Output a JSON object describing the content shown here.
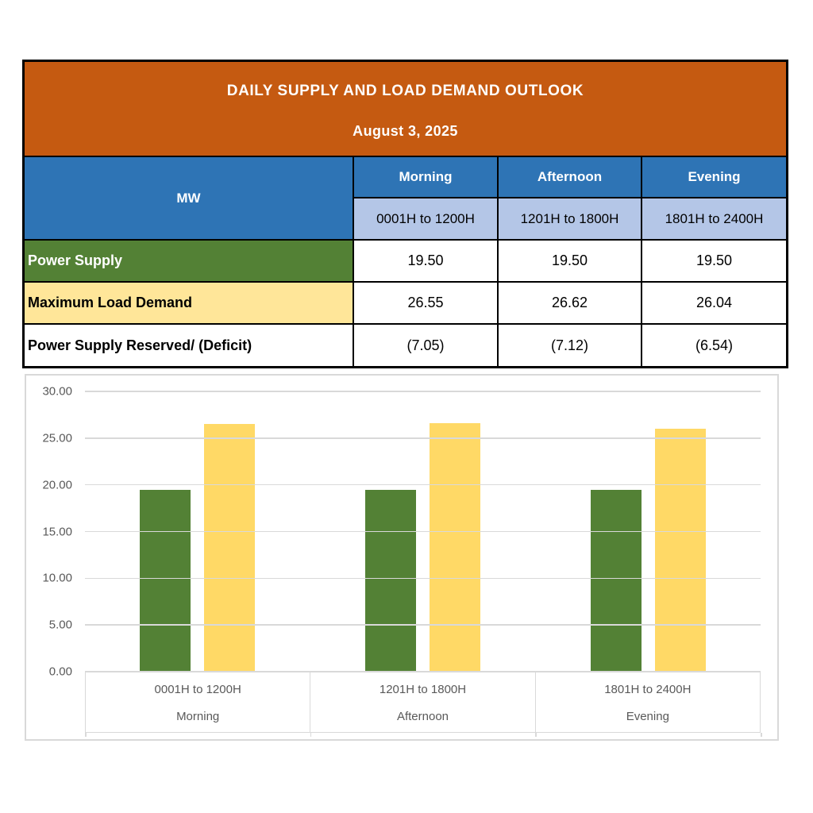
{
  "header": {
    "title": "DAILY SUPPLY AND LOAD DEMAND OUTLOOK",
    "date": "August 3, 2025"
  },
  "table": {
    "unit_label": "MW",
    "columns": [
      {
        "period": "Morning",
        "range": "0001H to 1200H"
      },
      {
        "period": "Afternoon",
        "range": "1201H to 1800H"
      },
      {
        "period": "Evening",
        "range": "1801H to 2400H"
      }
    ],
    "rows": [
      {
        "label": "Power Supply",
        "values": [
          "19.50",
          "19.50",
          "19.50"
        ]
      },
      {
        "label": "Maximum Load Demand",
        "values": [
          "26.55",
          "26.62",
          "26.04"
        ]
      },
      {
        "label": "Power Supply Reserved/ (Deficit)",
        "values": [
          "(7.05)",
          "(7.12)",
          "(6.54)"
        ]
      }
    ]
  },
  "chart_data": {
    "type": "bar",
    "categories": [
      {
        "range": "0001H to 1200H",
        "period": "Morning"
      },
      {
        "range": "1201H to 1800H",
        "period": "Afternoon"
      },
      {
        "range": "1801H to 2400H",
        "period": "Evening"
      }
    ],
    "series": [
      {
        "name": "Power Supply",
        "color": "#538135",
        "values": [
          19.5,
          19.5,
          19.5
        ]
      },
      {
        "name": "Maximum Load Demand",
        "color": "#FFD966",
        "values": [
          26.55,
          26.62,
          26.04
        ]
      }
    ],
    "title": "",
    "xlabel": "",
    "ylabel": "",
    "ylim": [
      0,
      30
    ],
    "y_tick_step": 5,
    "y_tick_labels": [
      "0.00",
      "5.00",
      "10.00",
      "15.00",
      "20.00",
      "25.00",
      "30.00"
    ],
    "grid": true,
    "legend": "none"
  },
  "colors": {
    "header_orange": "#C55A11",
    "header_blue": "#2E74B5",
    "subheader_light_blue": "#B4C6E7",
    "power_supply_green": "#538135",
    "max_load_row_yellow": "#FFE699",
    "bar_green": "#538135",
    "bar_yellow": "#FFD966",
    "gridline_gray": "#D9D9D9",
    "axis_text_gray": "#595959",
    "table_border_black": "#000000"
  }
}
